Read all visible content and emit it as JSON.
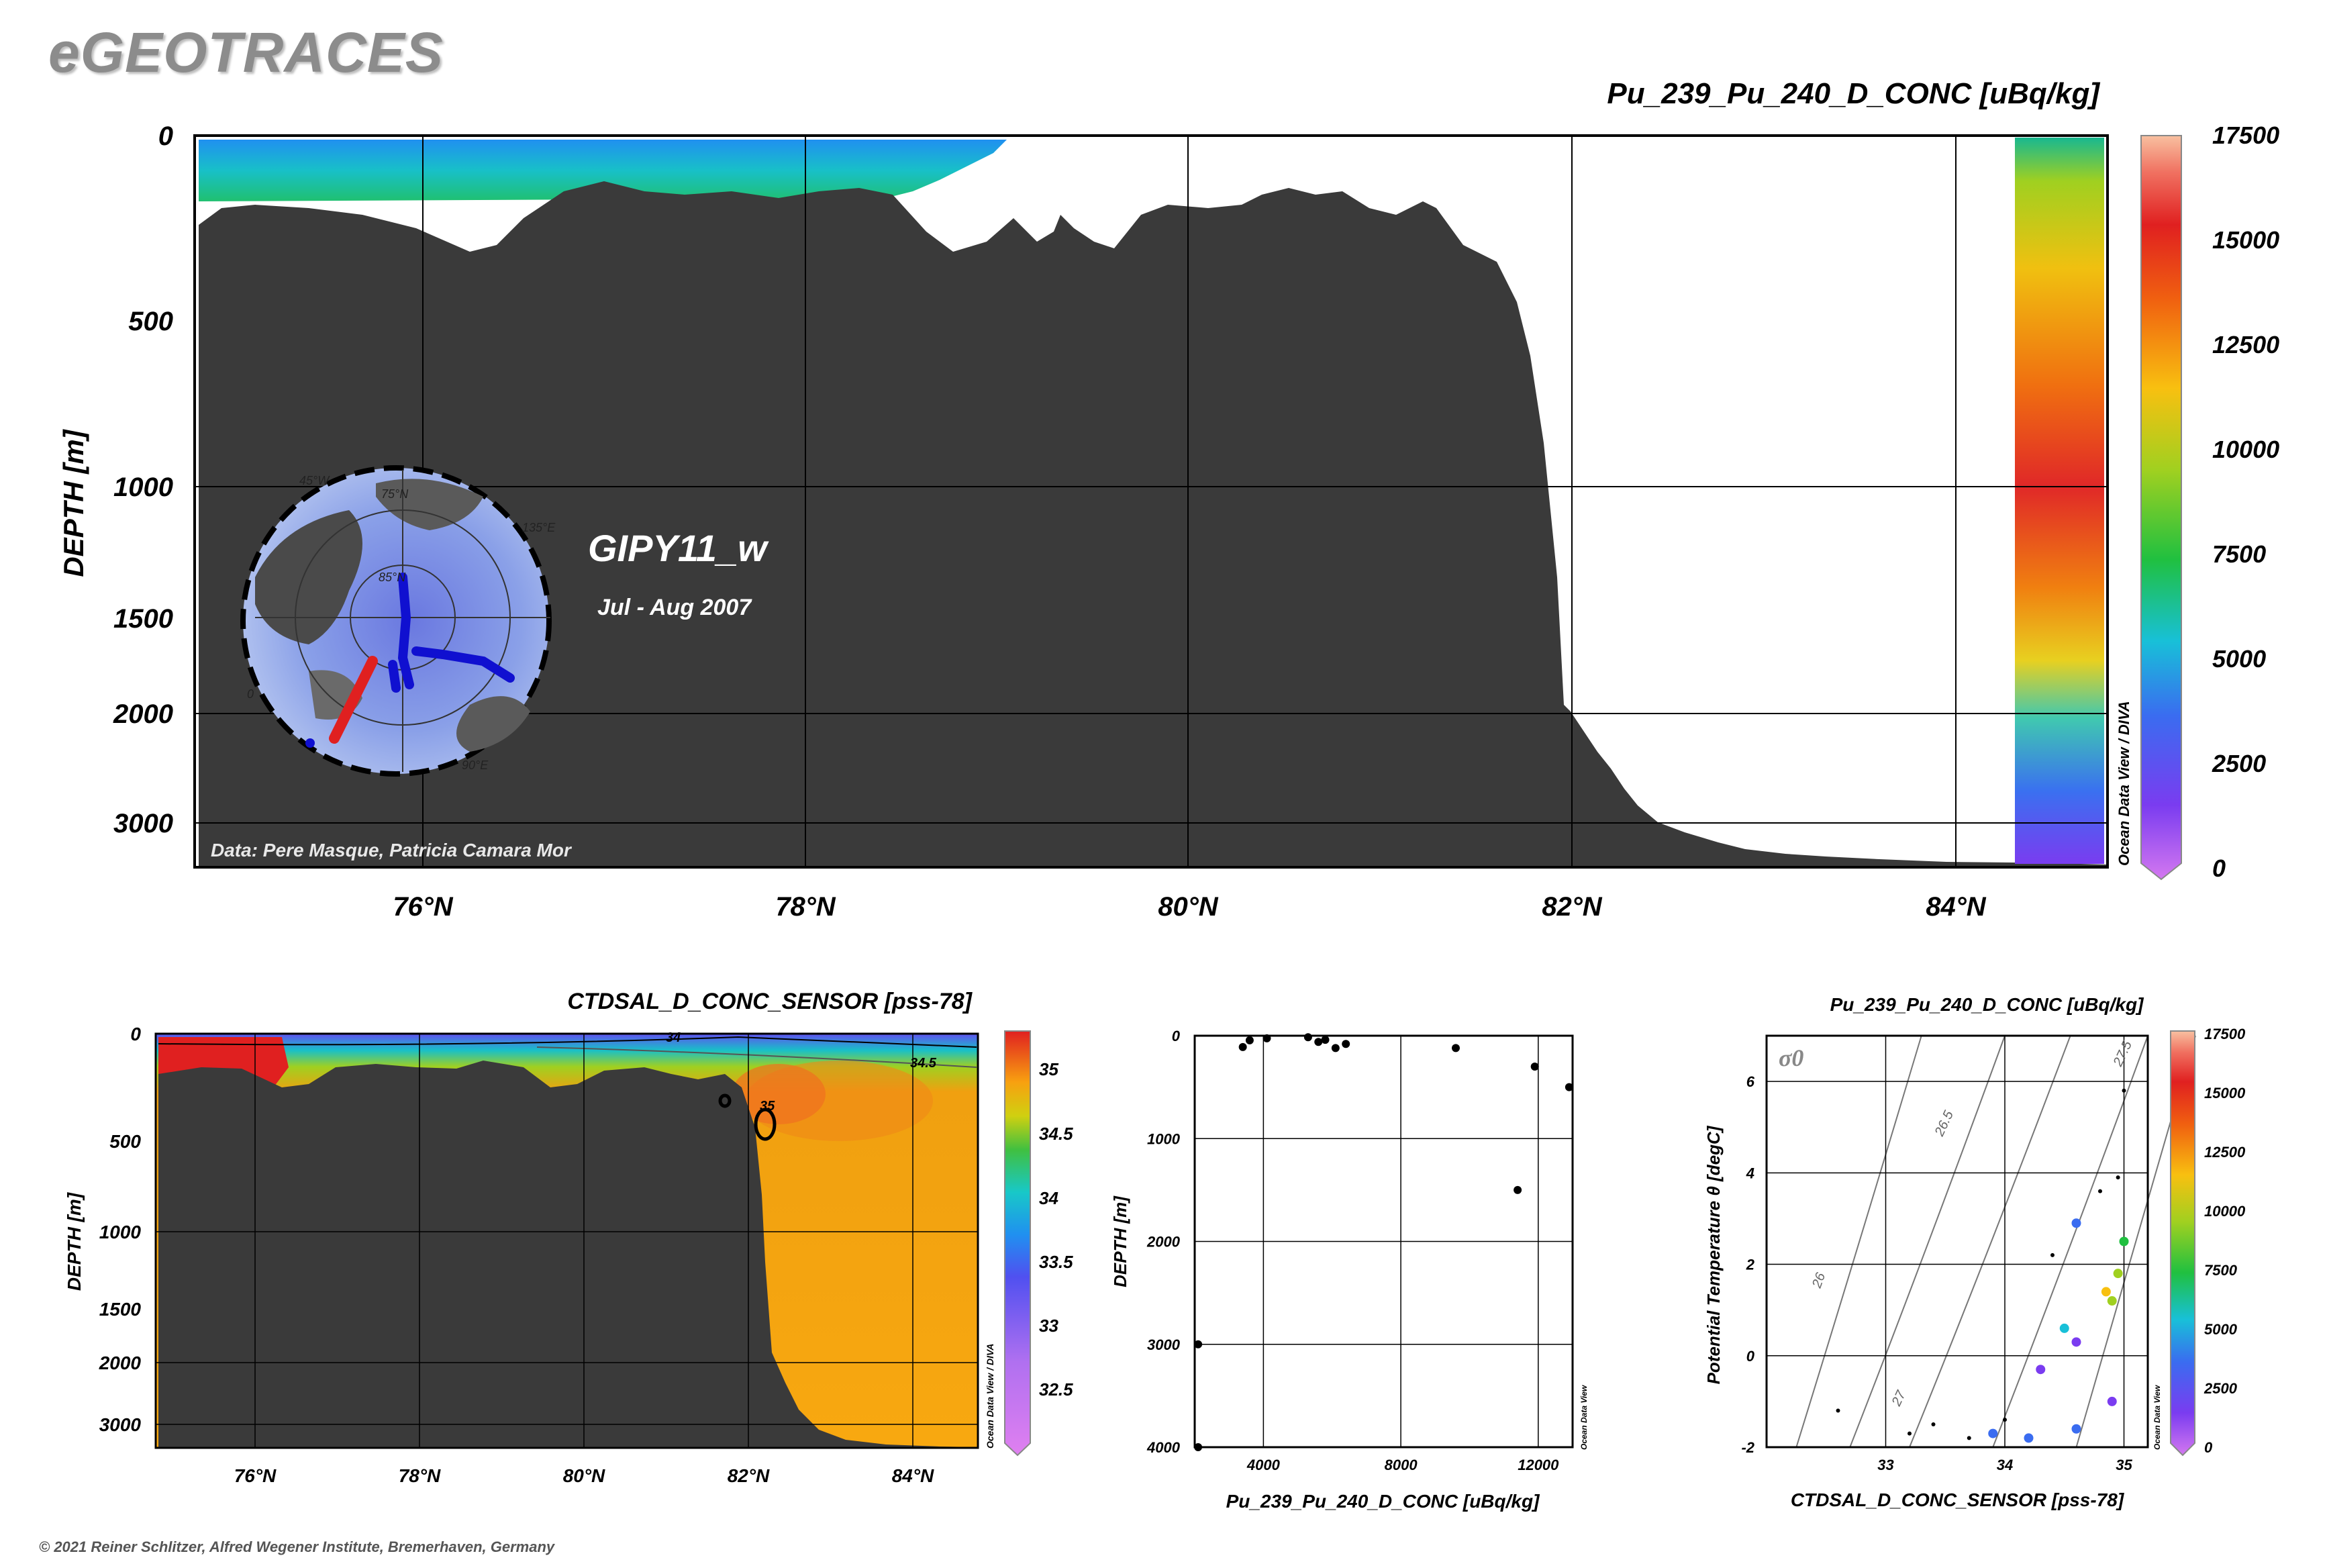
{
  "logo": "eGEOTRACES",
  "copyright": "© 2021 Reiner Schlitzer, Alfred Wegener Institute, Bremerhaven, Germany",
  "watermark": "Ocean Data View / DIVA",
  "watermark_small": "Ocean Data View",
  "main_section": {
    "title": "Pu_239_Pu_240_D_CONC [uBq/kg]",
    "ylabel": "DEPTH [m]",
    "y_ticks": [
      "0",
      "500",
      "1000",
      "1500",
      "2000",
      "3000"
    ],
    "x_ticks": [
      "76°N",
      "78°N",
      "80°N",
      "82°N",
      "84°N"
    ],
    "cruise": "GIPY11_w",
    "dates": "Jul - Aug 2007",
    "data_credit": "Data: Pere Masque, Patricia Camara Mor",
    "colorbar_ticks": [
      "17500",
      "15000",
      "12500",
      "10000",
      "7500",
      "5000",
      "2500",
      "0"
    ],
    "map_labels": [
      "75°N",
      "85°N",
      "90°E",
      "0",
      "135°E",
      "45°W"
    ]
  },
  "salinity_section": {
    "title": "CTDSAL_D_CONC_SENSOR [pss-78]",
    "ylabel": "DEPTH [m]",
    "y_ticks": [
      "0",
      "500",
      "1000",
      "1500",
      "2000",
      "3000"
    ],
    "x_ticks": [
      "76°N",
      "78°N",
      "80°N",
      "82°N",
      "84°N"
    ],
    "contour_labels": [
      "34",
      "34.5",
      "35"
    ],
    "colorbar_ticks": [
      "35",
      "34.5",
      "34",
      "33.5",
      "33",
      "32.5"
    ]
  },
  "colors": {
    "bathymetry": "#3a3a3a",
    "track_blue": "#1010d0",
    "track_red": "#e02020"
  },
  "chart_data": [
    {
      "type": "scatter",
      "title": "",
      "xlabel": "Pu_239_Pu_240_D_CONC [uBq/kg]",
      "ylabel": "DEPTH [m]",
      "xlim": [
        2000,
        13000
      ],
      "ylim": [
        4000,
        0
      ],
      "x_ticks": [
        "4000",
        "8000",
        "12000"
      ],
      "y_ticks": [
        "0",
        "1000",
        "2000",
        "3000",
        "4000"
      ],
      "x": [
        2100,
        3400,
        3600,
        4100,
        5300,
        5600,
        5800,
        6100,
        6400,
        9600,
        11400,
        11900,
        12900,
        2100
      ],
      "y": [
        3000,
        110,
        45,
        25,
        15,
        60,
        40,
        120,
        80,
        120,
        1500,
        300,
        500,
        4000
      ]
    },
    {
      "type": "scatter",
      "title": "Pu_239_Pu_240_D_CONC [uBq/kg]",
      "xlabel": "CTDSAL_D_CONC_SENSOR [pss-78]",
      "ylabel": "Potential Temperature θ [degC]",
      "xlim": [
        32,
        35.2
      ],
      "ylim": [
        -2,
        7
      ],
      "x_ticks": [
        "33",
        "34",
        "35"
      ],
      "y_ticks": [
        "-2",
        "0",
        "2",
        "4",
        "6"
      ],
      "sigma_label": "σ0",
      "isopycnal_labels": [
        "26",
        "26.5",
        "27",
        "27.5"
      ],
      "colorbar_ticks": [
        "17500",
        "15000",
        "12500",
        "10000",
        "7500",
        "5000",
        "2500",
        "0"
      ],
      "x": [
        33.4,
        33.9,
        34.6,
        34.9,
        34.6,
        34.3,
        34.5,
        34.9,
        34.95,
        35.0,
        34.8,
        34.6,
        34.4,
        34.2,
        34.0,
        33.7,
        33.2,
        32.6,
        34.85,
        34.95,
        35.0
      ],
      "y": [
        -1.5,
        -1.7,
        -1.6,
        -1.0,
        0.3,
        -0.3,
        0.6,
        1.2,
        1.8,
        2.5,
        3.6,
        2.9,
        2.2,
        -1.8,
        -1.4,
        -1.8,
        -1.7,
        -1.2,
        1.4,
        3.9,
        5.8
      ],
      "value": [
        null,
        5000,
        5000,
        2000,
        3500,
        3000,
        6000,
        10000,
        11000,
        9000,
        null,
        4000,
        null,
        5500,
        null,
        null,
        null,
        null,
        12000,
        null,
        null
      ]
    }
  ]
}
